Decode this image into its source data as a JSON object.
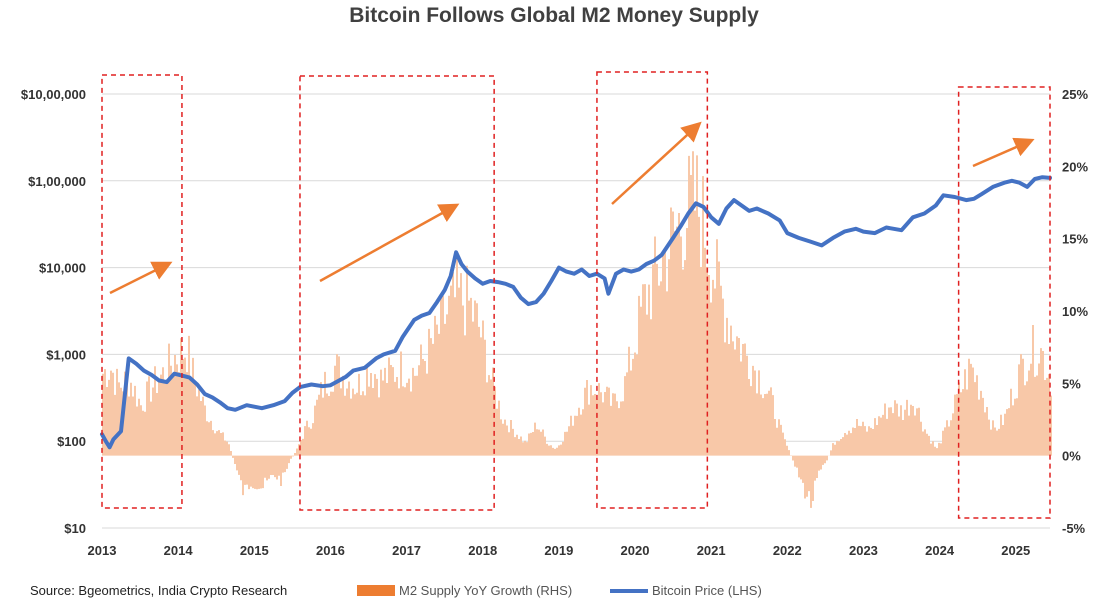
{
  "chart_data": {
    "type": "line",
    "title": "Bitcoin Follows Global M2 Money Supply",
    "source": "Source: Bgeometrics, India Crypto Research",
    "x_ticks": [
      "2013",
      "2014",
      "2015",
      "2016",
      "2017",
      "2018",
      "2019",
      "2020",
      "2021",
      "2022",
      "2023",
      "2024",
      "2025"
    ],
    "y_left": {
      "scale": "log",
      "ticks": [
        "$10",
        "$100",
        "$1,000",
        "$10,000",
        "$1,00,000",
        "$10,00,000"
      ],
      "range": [
        10,
        1000000
      ]
    },
    "y_right": {
      "ticks": [
        "-5%",
        "0%",
        "5%",
        "10%",
        "15%",
        "20%",
        "25%"
      ],
      "range": [
        -5,
        25
      ]
    },
    "grid": true,
    "legend_position": "bottom",
    "colors": {
      "m2": "#f8c8a8",
      "m2_legend": "#ed7d31",
      "btc": "#4472c4",
      "box": "#e02020",
      "arrow": "#ed7d31"
    },
    "series": [
      {
        "name": "M2 Supply YoY Growth (RHS)",
        "type": "area",
        "axis": "right",
        "points": [
          [
            2013.0,
            6.5
          ],
          [
            2013.1,
            7.0
          ],
          [
            2013.2,
            5.5
          ],
          [
            2013.35,
            6.0
          ],
          [
            2013.5,
            4.0
          ],
          [
            2013.65,
            5.5
          ],
          [
            2013.8,
            6.5
          ],
          [
            2013.95,
            7.8
          ],
          [
            2014.1,
            8.5
          ],
          [
            2014.2,
            6.0
          ],
          [
            2014.35,
            3.5
          ],
          [
            2014.5,
            2.0
          ],
          [
            2014.65,
            1.0
          ],
          [
            2014.75,
            -1.0
          ],
          [
            2014.85,
            -3.0
          ],
          [
            2014.95,
            -2.0
          ],
          [
            2015.1,
            -2.5
          ],
          [
            2015.25,
            -1.5
          ],
          [
            2015.35,
            -2.0
          ],
          [
            2015.45,
            -0.5
          ],
          [
            2015.55,
            0.5
          ],
          [
            2015.65,
            2.0
          ],
          [
            2015.75,
            3.0
          ],
          [
            2015.9,
            5.5
          ],
          [
            2016.05,
            7.0
          ],
          [
            2016.2,
            6.0
          ],
          [
            2016.35,
            5.5
          ],
          [
            2016.5,
            7.0
          ],
          [
            2016.65,
            6.0
          ],
          [
            2016.8,
            6.5
          ],
          [
            2016.95,
            7.0
          ],
          [
            2017.1,
            6.5
          ],
          [
            2017.2,
            7.5
          ],
          [
            2017.35,
            9.0
          ],
          [
            2017.5,
            11.0
          ],
          [
            2017.65,
            12.5
          ],
          [
            2017.8,
            12.0
          ],
          [
            2017.95,
            10.0
          ],
          [
            2018.1,
            6.0
          ],
          [
            2018.25,
            3.0
          ],
          [
            2018.4,
            2.0
          ],
          [
            2018.55,
            1.0
          ],
          [
            2018.7,
            2.5
          ],
          [
            2018.85,
            1.0
          ],
          [
            2018.95,
            0.5
          ],
          [
            2019.1,
            2.0
          ],
          [
            2019.25,
            4.0
          ],
          [
            2019.4,
            5.5
          ],
          [
            2019.55,
            5.0
          ],
          [
            2019.7,
            4.0
          ],
          [
            2019.85,
            5.5
          ],
          [
            2019.95,
            8.0
          ],
          [
            2020.1,
            12.0
          ],
          [
            2020.25,
            14.0
          ],
          [
            2020.4,
            16.0
          ],
          [
            2020.55,
            18.0
          ],
          [
            2020.7,
            19.5
          ],
          [
            2020.8,
            20.0
          ],
          [
            2020.9,
            18.0
          ],
          [
            2021.05,
            14.0
          ],
          [
            2021.2,
            11.0
          ],
          [
            2021.35,
            9.0
          ],
          [
            2021.5,
            7.5
          ],
          [
            2021.65,
            6.0
          ],
          [
            2021.8,
            4.0
          ],
          [
            2021.9,
            2.0
          ],
          [
            2022.0,
            0.5
          ],
          [
            2022.1,
            -1.0
          ],
          [
            2022.2,
            -2.5
          ],
          [
            2022.3,
            -3.8
          ],
          [
            2022.4,
            -1.5
          ],
          [
            2022.5,
            -0.5
          ],
          [
            2022.6,
            1.0
          ],
          [
            2022.75,
            2.0
          ],
          [
            2022.9,
            2.5
          ],
          [
            2023.05,
            2.0
          ],
          [
            2023.2,
            3.0
          ],
          [
            2023.35,
            4.0
          ],
          [
            2023.5,
            3.5
          ],
          [
            2023.65,
            4.5
          ],
          [
            2023.8,
            2.0
          ],
          [
            2023.95,
            0.5
          ],
          [
            2024.1,
            2.5
          ],
          [
            2024.25,
            5.0
          ],
          [
            2024.4,
            7.0
          ],
          [
            2024.55,
            5.0
          ],
          [
            2024.7,
            2.0
          ],
          [
            2024.85,
            3.0
          ],
          [
            2025.0,
            6.0
          ],
          [
            2025.15,
            8.0
          ],
          [
            2025.3,
            8.5
          ],
          [
            2025.4,
            7.0
          ],
          [
            2025.45,
            6.0
          ]
        ]
      },
      {
        "name": "Bitcoin Price (LHS)",
        "type": "line",
        "axis": "left",
        "points": [
          [
            2013.0,
            120
          ],
          [
            2013.05,
            100
          ],
          [
            2013.1,
            85
          ],
          [
            2013.15,
            105
          ],
          [
            2013.25,
            130
          ],
          [
            2013.35,
            900
          ],
          [
            2013.45,
            780
          ],
          [
            2013.55,
            650
          ],
          [
            2013.65,
            580
          ],
          [
            2013.75,
            500
          ],
          [
            2013.85,
            480
          ],
          [
            2013.95,
            600
          ],
          [
            2014.05,
            570
          ],
          [
            2014.15,
            540
          ],
          [
            2014.25,
            450
          ],
          [
            2014.35,
            350
          ],
          [
            2014.45,
            320
          ],
          [
            2014.55,
            280
          ],
          [
            2014.65,
            240
          ],
          [
            2014.75,
            230
          ],
          [
            2014.9,
            260
          ],
          [
            2015.0,
            250
          ],
          [
            2015.1,
            240
          ],
          [
            2015.25,
            260
          ],
          [
            2015.4,
            290
          ],
          [
            2015.5,
            360
          ],
          [
            2015.6,
            420
          ],
          [
            2015.75,
            450
          ],
          [
            2015.9,
            430
          ],
          [
            2016.0,
            440
          ],
          [
            2016.2,
            550
          ],
          [
            2016.3,
            650
          ],
          [
            2016.45,
            700
          ],
          [
            2016.6,
            900
          ],
          [
            2016.7,
            1000
          ],
          [
            2016.85,
            1100
          ],
          [
            2016.95,
            1600
          ],
          [
            2017.1,
            2500
          ],
          [
            2017.2,
            2800
          ],
          [
            2017.3,
            3000
          ],
          [
            2017.4,
            4000
          ],
          [
            2017.5,
            5500
          ],
          [
            2017.58,
            8000
          ],
          [
            2017.65,
            15000
          ],
          [
            2017.72,
            11000
          ],
          [
            2017.8,
            9000
          ],
          [
            2017.9,
            7500
          ],
          [
            2018.0,
            6500
          ],
          [
            2018.1,
            7000
          ],
          [
            2018.2,
            6800
          ],
          [
            2018.3,
            6500
          ],
          [
            2018.4,
            6000
          ],
          [
            2018.5,
            4500
          ],
          [
            2018.6,
            3800
          ],
          [
            2018.7,
            4000
          ],
          [
            2018.8,
            5000
          ],
          [
            2018.9,
            7000
          ],
          [
            2019.0,
            10000
          ],
          [
            2019.1,
            9000
          ],
          [
            2019.2,
            8500
          ],
          [
            2019.3,
            9500
          ],
          [
            2019.4,
            8000
          ],
          [
            2019.5,
            8500
          ],
          [
            2019.6,
            7500
          ],
          [
            2019.65,
            5000
          ],
          [
            2019.75,
            8500
          ],
          [
            2019.85,
            9500
          ],
          [
            2019.95,
            9000
          ],
          [
            2020.05,
            9500
          ],
          [
            2020.15,
            11000
          ],
          [
            2020.25,
            12000
          ],
          [
            2020.35,
            14000
          ],
          [
            2020.5,
            22000
          ],
          [
            2020.6,
            30000
          ],
          [
            2020.7,
            42000
          ],
          [
            2020.8,
            55000
          ],
          [
            2020.9,
            50000
          ],
          [
            2021.0,
            38000
          ],
          [
            2021.1,
            32000
          ],
          [
            2021.2,
            48000
          ],
          [
            2021.3,
            60000
          ],
          [
            2021.4,
            52000
          ],
          [
            2021.5,
            45000
          ],
          [
            2021.6,
            48000
          ],
          [
            2021.75,
            42000
          ],
          [
            2021.9,
            35000
          ],
          [
            2022.0,
            25000
          ],
          [
            2022.15,
            22000
          ],
          [
            2022.3,
            20000
          ],
          [
            2022.45,
            18000
          ],
          [
            2022.6,
            22000
          ],
          [
            2022.75,
            26000
          ],
          [
            2022.9,
            28000
          ],
          [
            2023.0,
            26000
          ],
          [
            2023.15,
            25000
          ],
          [
            2023.3,
            29000
          ],
          [
            2023.5,
            27000
          ],
          [
            2023.65,
            38000
          ],
          [
            2023.8,
            42000
          ],
          [
            2023.95,
            52000
          ],
          [
            2024.05,
            68000
          ],
          [
            2024.2,
            65000
          ],
          [
            2024.35,
            60000
          ],
          [
            2024.45,
            62000
          ],
          [
            2024.55,
            70000
          ],
          [
            2024.7,
            85000
          ],
          [
            2024.85,
            95000
          ],
          [
            2024.95,
            100000
          ],
          [
            2025.05,
            95000
          ],
          [
            2025.15,
            85000
          ],
          [
            2025.25,
            105000
          ],
          [
            2025.35,
            110000
          ],
          [
            2025.45,
            108000
          ]
        ]
      }
    ],
    "highlight_boxes": [
      [
        2013.0,
        2014.05
      ],
      [
        2015.6,
        2018.15
      ],
      [
        2019.5,
        2020.95
      ],
      [
        2024.25,
        2025.45
      ]
    ],
    "arrows": [
      [
        [
          2013.1,
          2500
        ],
        [
          2013.9,
          12000
        ],
        [
          2014.05,
          3000
        ]
      ]
    ]
  }
}
